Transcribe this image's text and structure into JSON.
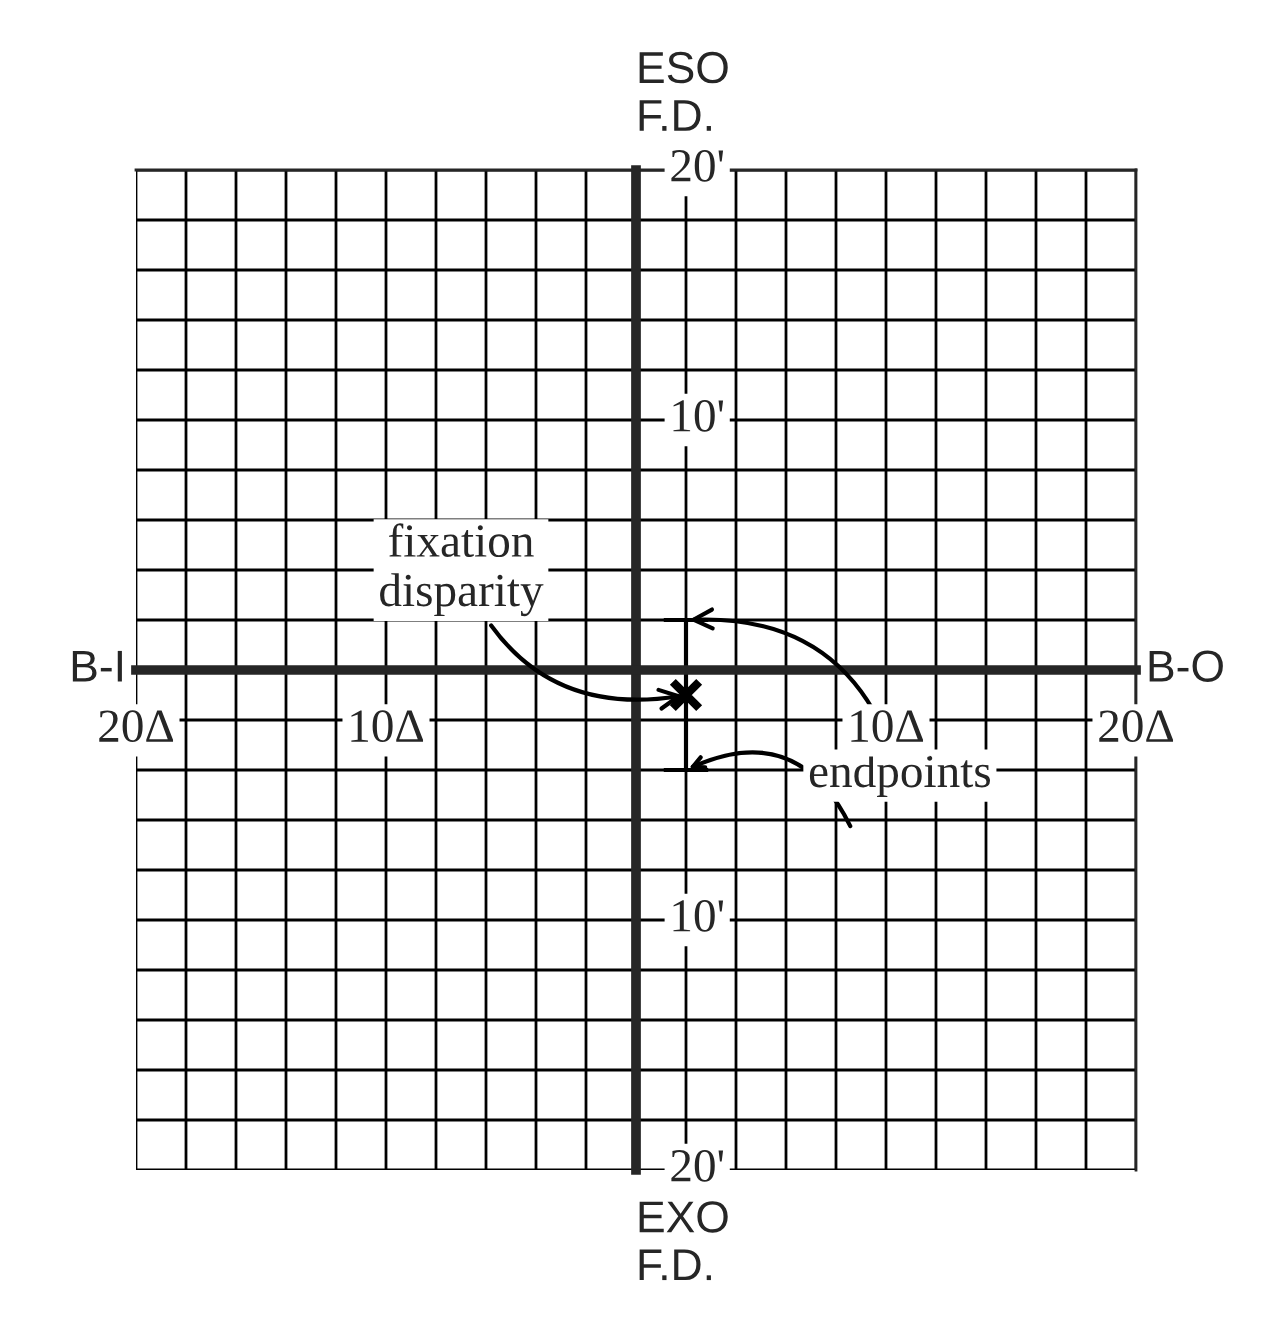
{
  "chart_data": {
    "type": "scatter",
    "x": [
      2
    ],
    "values": [
      -1
    ],
    "errors": [
      3
    ],
    "color": "#000000",
    "marker": "cross",
    "xlim": [
      -20,
      20
    ],
    "ylim": [
      -20,
      20
    ],
    "xticks": [
      {
        "value": -20,
        "label": "20Δ"
      },
      {
        "value": -18,
        "label": null
      },
      {
        "value": -16,
        "label": null
      },
      {
        "value": -14,
        "label": null
      },
      {
        "value": -12,
        "label": null
      },
      {
        "value": -10,
        "label": "10Δ"
      },
      {
        "value": -8,
        "label": null
      },
      {
        "value": -6,
        "label": null
      },
      {
        "value": -4,
        "label": null
      },
      {
        "value": -2,
        "label": null
      },
      {
        "value": 0,
        "label": null
      },
      {
        "value": 2,
        "label": null
      },
      {
        "value": 4,
        "label": null
      },
      {
        "value": 6,
        "label": null
      },
      {
        "value": 8,
        "label": null
      },
      {
        "value": 10,
        "label": "10Δ"
      },
      {
        "value": 12,
        "label": null
      },
      {
        "value": 14,
        "label": null
      },
      {
        "value": 16,
        "label": null
      },
      {
        "value": 18,
        "label": null
      },
      {
        "value": 20,
        "label": "20Δ"
      }
    ],
    "yticks": [
      {
        "value": -20,
        "label": "20'"
      },
      {
        "value": -18,
        "label": null
      },
      {
        "value": -16,
        "label": null
      },
      {
        "value": -14,
        "label": null
      },
      {
        "value": -12,
        "label": null
      },
      {
        "value": -10,
        "label": "10'"
      },
      {
        "value": -8,
        "label": null
      },
      {
        "value": -6,
        "label": null
      },
      {
        "value": -4,
        "label": null
      },
      {
        "value": -2,
        "label": null
      },
      {
        "value": 0,
        "label": null
      },
      {
        "value": 2,
        "label": null
      },
      {
        "value": 4,
        "label": null
      },
      {
        "value": 6,
        "label": null
      },
      {
        "value": 8,
        "label": null
      },
      {
        "value": 10,
        "label": "10'"
      },
      {
        "value": 12,
        "label": null
      },
      {
        "value": 14,
        "label": null
      },
      {
        "value": 16,
        "label": null
      },
      {
        "value": 18,
        "label": null
      },
      {
        "value": 20,
        "label": "20'"
      }
    ],
    "grid": true,
    "annotations": [
      "ESO\nF.D.",
      "B-I",
      "B-O",
      "EXO\nF.D.",
      {
        "text": "fixation\ndisparity",
        "x": 2,
        "y": -1
      },
      {
        "text": "endpoints",
        "x": 2,
        "y": 2
      }
    ]
  }
}
